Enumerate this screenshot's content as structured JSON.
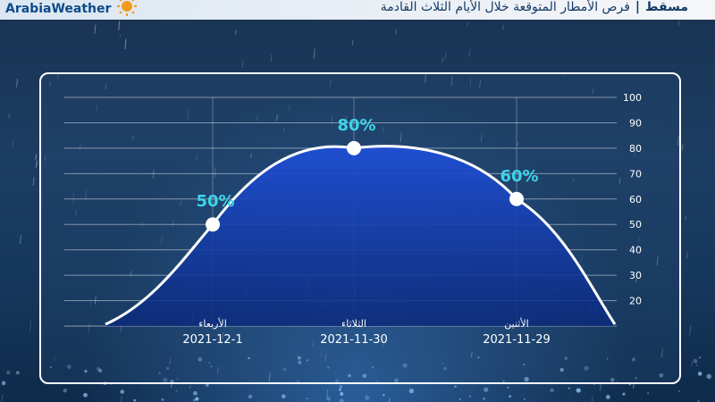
{
  "header": {
    "brand": "ArabiaWeather",
    "city": "مسقط",
    "separator": "|",
    "subtitle": "فرص الأمطار المتوقعة  خلال الأيام الثلاث القادمة"
  },
  "colors": {
    "accent": "#3ed3e8",
    "curve": "#ffffff",
    "fill_top": "#1f4fd6",
    "fill_bottom": "#0b2a7a"
  },
  "chart_data": {
    "type": "area",
    "title": "",
    "xlabel": "",
    "ylabel": "",
    "ylim": [
      10,
      100
    ],
    "yticks": [
      20,
      30,
      40,
      50,
      60,
      70,
      80,
      90,
      100
    ],
    "grid": true,
    "categories": [
      {
        "day": "الأربعاء",
        "date": "2021-12-1",
        "value": 50,
        "label": "50%"
      },
      {
        "day": "الثلاثاء",
        "date": "2021-11-30",
        "value": 80,
        "label": "80%"
      },
      {
        "day": "الأثنين",
        "date": "2021-11-29",
        "value": 60,
        "label": "60%"
      }
    ]
  }
}
